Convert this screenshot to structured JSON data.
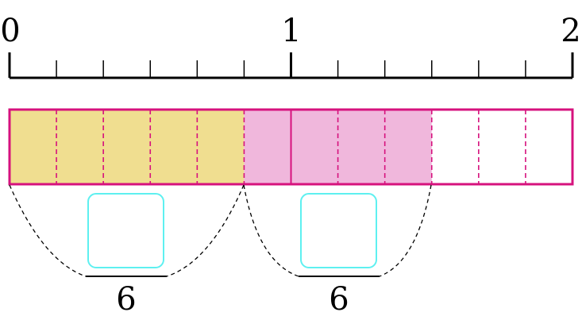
{
  "number_line": {
    "labels": [
      "0",
      "1",
      "2"
    ],
    "min": 0,
    "max": 2,
    "subdivisions_per_unit": 6
  },
  "bar": {
    "total_parts": 12,
    "filled_yellow_parts": 5,
    "filled_pink_parts": 4,
    "solid_divider_at_part": 6
  },
  "groups": [
    {
      "label": "6"
    },
    {
      "label": "6"
    }
  ],
  "colors": {
    "outline": "#d6127d",
    "yellow": "#f0de90",
    "pink": "#f0b7dc",
    "answer_box": "#5ef0f0",
    "ink": "#000000"
  }
}
